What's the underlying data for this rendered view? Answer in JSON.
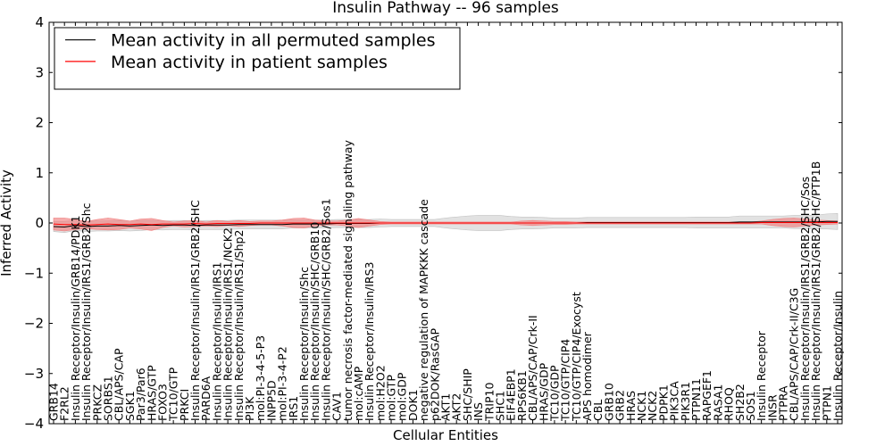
{
  "chart_data": {
    "type": "line",
    "title": "Insulin Pathway -- 96 samples",
    "xlabel": "Cellular Entities",
    "ylabel": "Inferred Activity",
    "ylim": [
      -4,
      4
    ],
    "yticks": [
      -4,
      -3,
      -2,
      -1,
      0,
      1,
      2,
      3,
      4
    ],
    "grid": false,
    "legend_position": "top-left",
    "colors": {
      "permuted": "#000000",
      "patient": "#ff0000",
      "permuted_band": "#bfbfbf",
      "patient_band": "#f08080"
    },
    "categories": [
      "GRB14",
      "F2RL2",
      "Insulin Receptor/Insulin/GRB14/PDK1",
      "Insulin Receptor/Insulin/IRS1/GRB2/Shc",
      "PRKCZ",
      "SORBS1",
      "CBL/APS/CAP",
      "SGK1",
      "Par3/Par6",
      "HRAS/GTP",
      "FOXO3",
      "TC10/GTP",
      "PRKCI",
      "Insulin Receptor/Insulin/IRS1/GRB2/SHC",
      "PARD6A",
      "Insulin Receptor/Insulin/IRS1",
      "Insulin Receptor/Insulin/IRS1/NCK2",
      "Insulin Receptor/Insulin/IRS1/Shp2",
      "PI3K",
      "mol:PI-3-4-5-P3",
      "INPP5D",
      "mol:PI-3-4-P2",
      "IRS1",
      "Insulin Receptor/Insulin/Shc",
      "Insulin Receptor/Insulin/SHC/GRB10",
      "Insulin Receptor/Insulin/SHC/GRB2/Sos1",
      "CAV1",
      "tumor necrosis factor-mediated signaling pathway",
      "mol:cAMP",
      "Insulin Receptor/Insulin/IRS3",
      "mol:H2O2",
      "mol:GTP",
      "mol:GDP",
      "DOK1",
      "negative regulation of MAPKKK cascade",
      "p62DOK/RasGAP",
      "AKT1",
      "AKT2",
      "SHC/SHIP",
      "INS",
      "TRIP10",
      "SHC1",
      "EIF4EBP1",
      "RPS6KB1",
      "CBL/APS/CAP/Crk-II",
      "HRAS/GDP",
      "TC10/GDP",
      "TC10/GTP/CIP4",
      "TC10/GTP/CIP4/Exocyst",
      "APS homodimer",
      "CBL",
      "GRB10",
      "GRB2",
      "HRAS",
      "NCK1",
      "NCK2",
      "PDPK1",
      "PIK3CA",
      "PIK3R1",
      "PTPN11",
      "RAPGEF1",
      "RASA1",
      "RHOQ",
      "SH2B2",
      "SOS1",
      "Insulin Receptor",
      "INSR",
      "PTPRA",
      "CBL/APS/CAP/Crk-II/C3G",
      "Insulin Receptor/Insulin/IRS1/GRB2/SHC/Sos",
      "Insulin Receptor/Insulin/IRS1/GRB2/SHC/PTP1B",
      "PTPN1",
      "Insulin Receptor/Insulin"
    ],
    "series": [
      {
        "name": "Mean activity in all permuted samples",
        "color": "#000000",
        "values": [
          -0.07,
          -0.08,
          -0.05,
          -0.07,
          -0.06,
          -0.06,
          -0.05,
          -0.06,
          -0.05,
          -0.04,
          -0.05,
          -0.04,
          -0.04,
          -0.05,
          -0.04,
          -0.04,
          -0.04,
          -0.03,
          -0.03,
          -0.03,
          -0.03,
          -0.03,
          -0.02,
          -0.02,
          -0.02,
          -0.02,
          -0.01,
          -0.01,
          -0.01,
          -0.01,
          0.0,
          0.0,
          0.0,
          0.0,
          0.0,
          0.0,
          0.0,
          0.0,
          0.0,
          0.0,
          0.0,
          0.0,
          0.0,
          0.0,
          0.0,
          0.0,
          0.0,
          0.0,
          0.0,
          0.01,
          0.01,
          0.01,
          0.01,
          0.01,
          0.01,
          0.01,
          0.01,
          0.01,
          0.01,
          0.01,
          0.01,
          0.01,
          0.01,
          0.02,
          0.02,
          0.02,
          0.02,
          0.02,
          0.02,
          0.02,
          0.02,
          0.03,
          0.03
        ],
        "band": [
          0.1,
          0.11,
          0.1,
          0.1,
          0.1,
          0.1,
          0.1,
          0.1,
          0.1,
          0.09,
          0.09,
          0.09,
          0.09,
          0.09,
          0.09,
          0.09,
          0.09,
          0.09,
          0.09,
          0.09,
          0.09,
          0.09,
          0.08,
          0.08,
          0.08,
          0.08,
          0.08,
          0.08,
          0.08,
          0.08,
          0.08,
          0.07,
          0.07,
          0.07,
          0.07,
          0.07,
          0.1,
          0.12,
          0.14,
          0.15,
          0.15,
          0.15,
          0.13,
          0.12,
          0.12,
          0.11,
          0.1,
          0.1,
          0.1,
          0.1,
          0.1,
          0.1,
          0.1,
          0.1,
          0.1,
          0.1,
          0.1,
          0.1,
          0.1,
          0.11,
          0.11,
          0.11,
          0.11,
          0.12,
          0.12,
          0.12,
          0.12,
          0.12,
          0.13,
          0.13,
          0.14,
          0.15,
          0.16
        ]
      },
      {
        "name": "Mean activity in patient samples",
        "color": "#ff0000",
        "values": [
          -0.02,
          -0.03,
          -0.03,
          -0.04,
          -0.03,
          -0.02,
          -0.03,
          -0.03,
          -0.02,
          -0.03,
          -0.02,
          -0.02,
          -0.02,
          -0.01,
          -0.02,
          -0.01,
          -0.01,
          -0.01,
          -0.01,
          0.0,
          0.0,
          0.0,
          0.0,
          0.0,
          0.0,
          0.0,
          0.0,
          0.0,
          0.0,
          0.0,
          0.0,
          0.0,
          0.0,
          0.0,
          0.0,
          0.0,
          0.0,
          0.0,
          0.0,
          0.0,
          0.0,
          0.0,
          0.0,
          0.0,
          0.0,
          0.0,
          0.0,
          0.0,
          0.0,
          0.0,
          0.0,
          0.0,
          0.0,
          0.0,
          0.0,
          0.0,
          0.0,
          0.0,
          0.0,
          0.0,
          0.0,
          0.0,
          0.0,
          0.0,
          0.0,
          0.01,
          0.01,
          0.01,
          0.01,
          0.01,
          0.01,
          0.01,
          0.01
        ],
        "band": [
          0.12,
          0.13,
          0.1,
          0.07,
          0.1,
          0.12,
          0.1,
          0.07,
          0.1,
          0.12,
          0.07,
          0.04,
          0.06,
          0.06,
          0.04,
          0.06,
          0.04,
          0.06,
          0.04,
          0.04,
          0.04,
          0.06,
          0.09,
          0.1,
          0.06,
          0.04,
          0.04,
          0.06,
          0.09,
          0.06,
          0.03,
          0.02,
          0.02,
          0.02,
          0.02,
          0.02,
          0.02,
          0.02,
          0.02,
          0.02,
          0.02,
          0.02,
          0.02,
          0.04,
          0.05,
          0.04,
          0.03,
          0.03,
          0.02,
          0.02,
          0.02,
          0.02,
          0.02,
          0.02,
          0.02,
          0.02,
          0.02,
          0.02,
          0.02,
          0.02,
          0.02,
          0.02,
          0.02,
          0.02,
          0.02,
          0.03,
          0.06,
          0.08,
          0.09,
          0.07,
          0.05,
          0.04,
          0.03
        ]
      }
    ]
  }
}
